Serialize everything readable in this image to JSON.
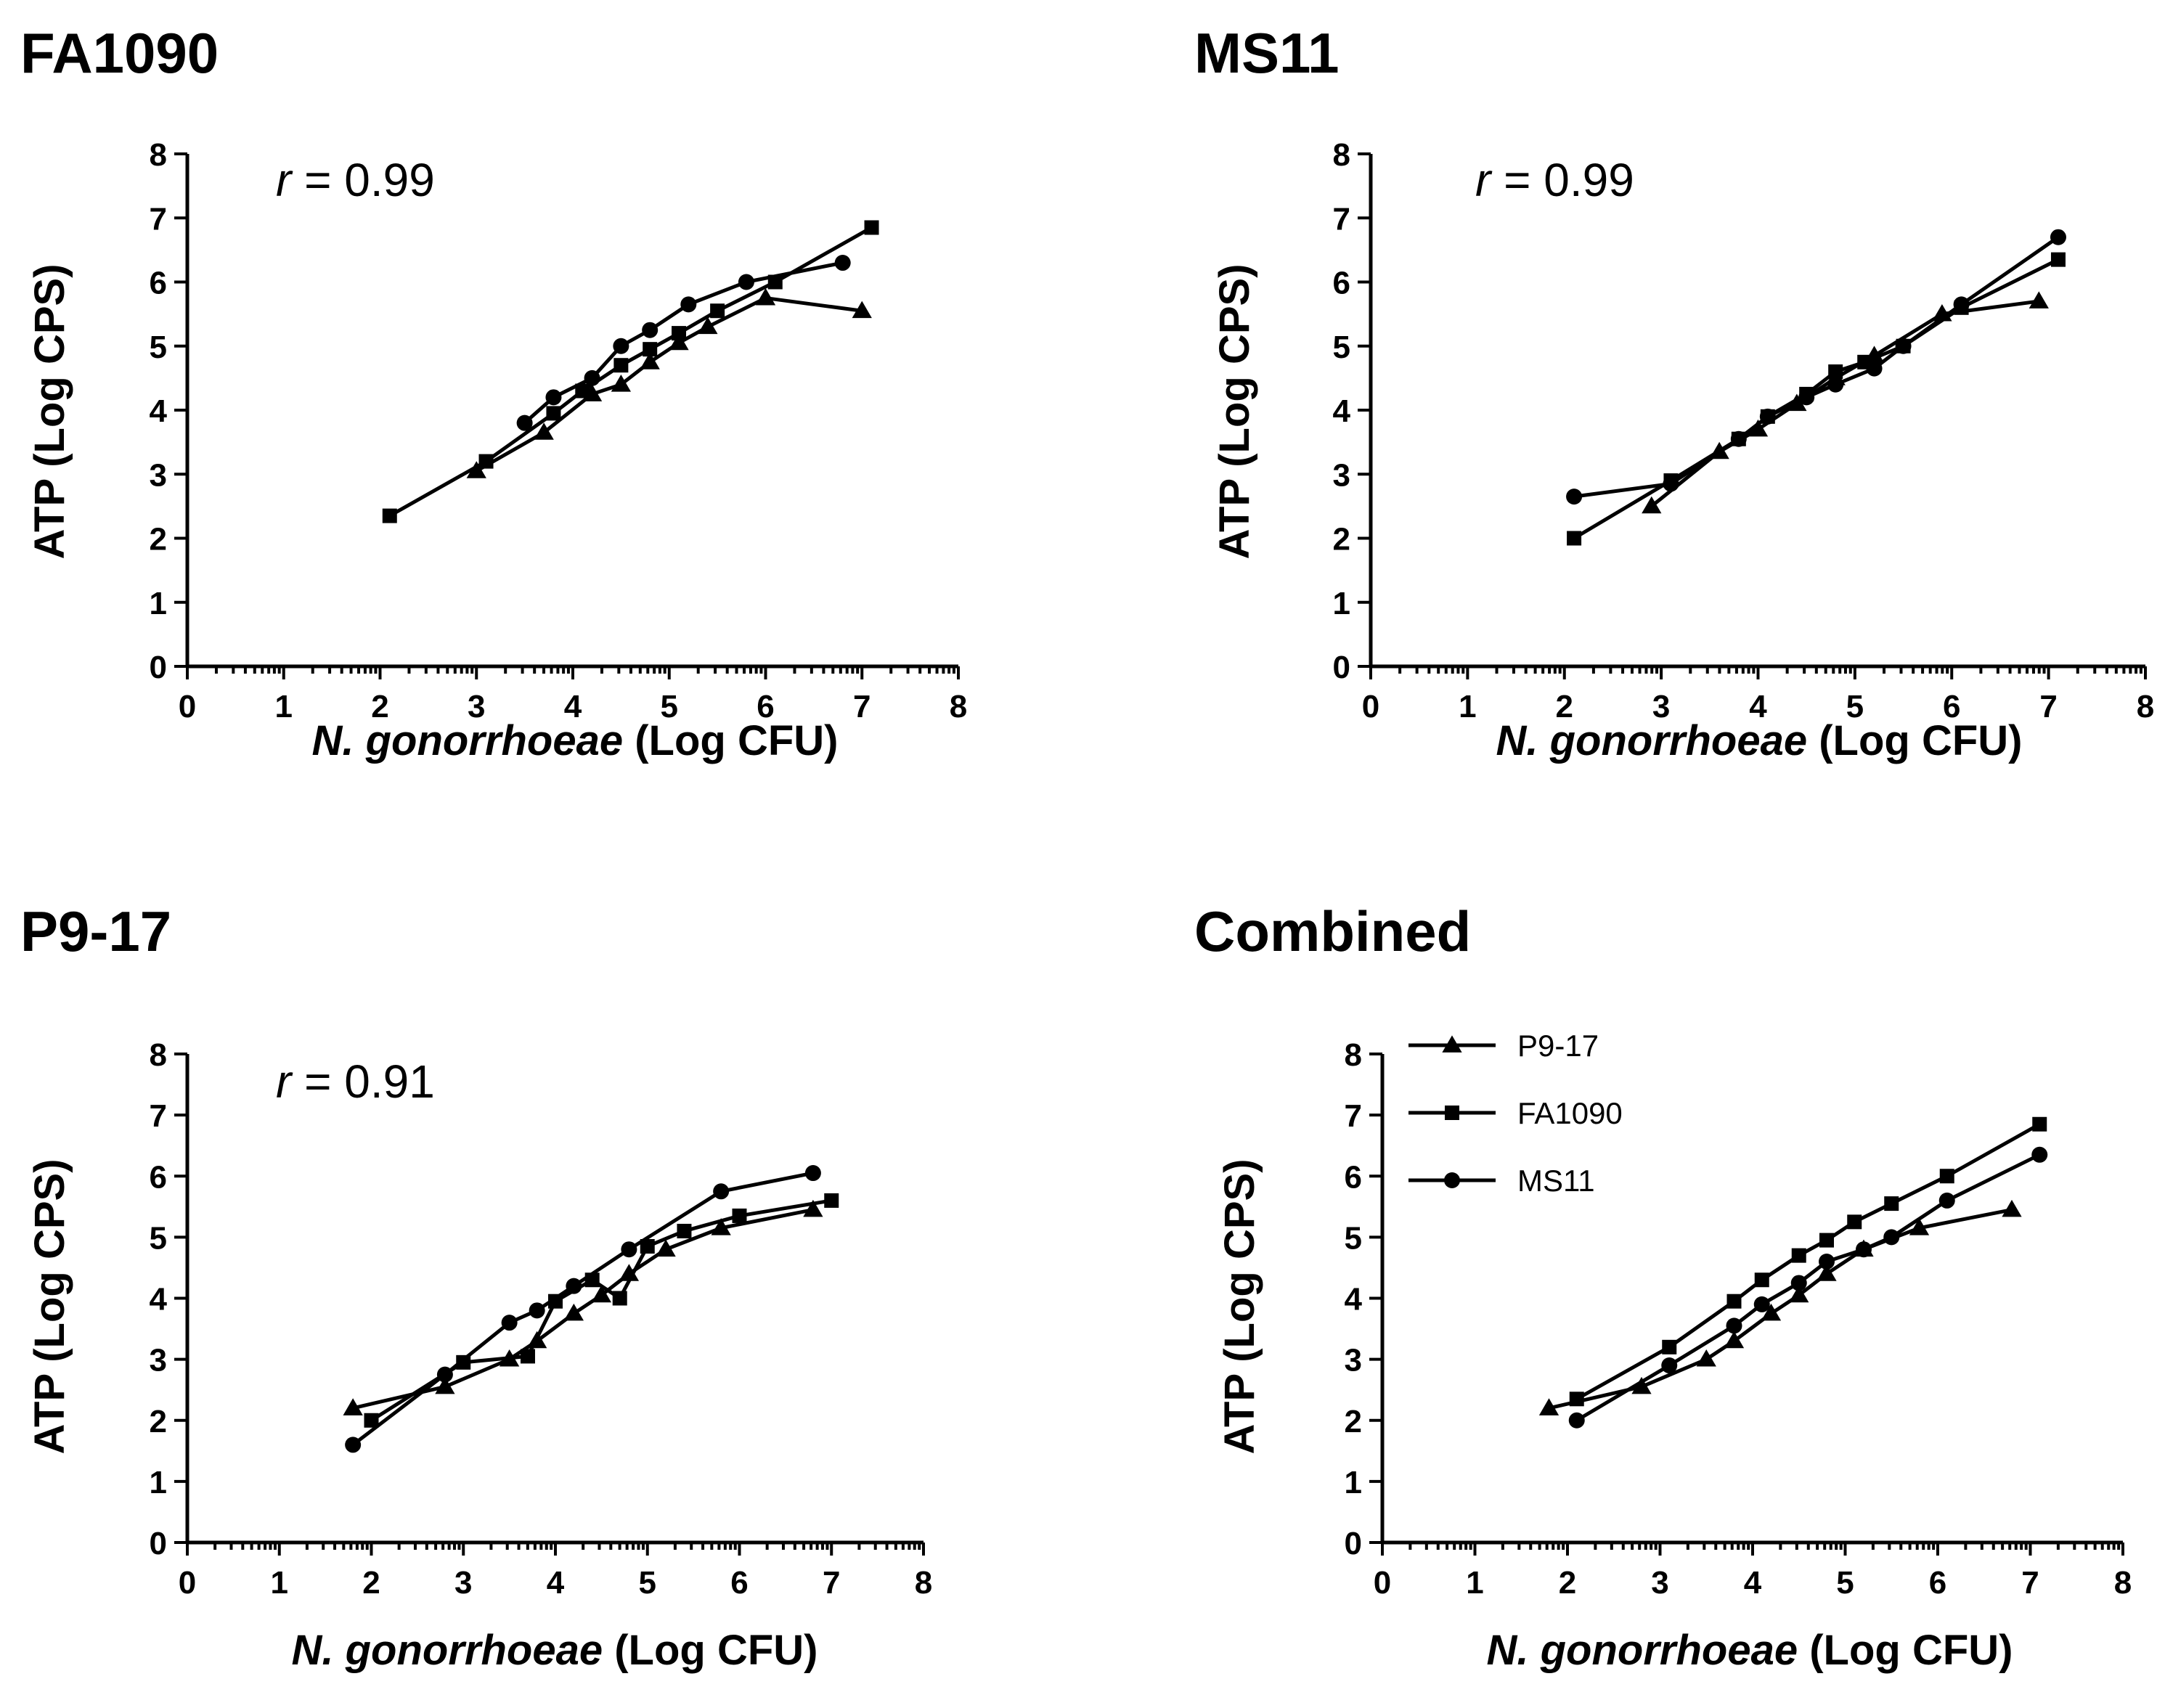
{
  "figure": {
    "colors": {
      "ink": "#000000",
      "background": "#ffffff"
    },
    "marker_shapes": {
      "P9-17": "triangle",
      "FA1090": "square",
      "MS11": "circle"
    }
  },
  "chart_data": [
    {
      "id": "fa1090",
      "type": "line",
      "title": "FA1090",
      "r_prefix": "r",
      "r_value": " = 0.99",
      "xlabel_italic": "N. gonorrhoeae",
      "xlabel_rest": " (Log CFU)",
      "ylabel": "ATP (Log CPS)",
      "xlim": [
        0,
        8
      ],
      "ylim": [
        0,
        8
      ],
      "xticks": [
        "0",
        "1",
        "2",
        "3",
        "4",
        "5",
        "6",
        "7",
        "8"
      ],
      "yticks": [
        "0",
        "1",
        "2",
        "3",
        "4",
        "5",
        "6",
        "7",
        "8"
      ],
      "legend": null,
      "series": [
        {
          "name": "P9-17",
          "marker": "triangle",
          "x": [
            3.0,
            3.7,
            4.2,
            4.5,
            4.8,
            5.1,
            5.4,
            6.0,
            7.0
          ],
          "y": [
            3.05,
            3.65,
            4.25,
            4.4,
            4.75,
            5.05,
            5.3,
            5.75,
            5.55
          ]
        },
        {
          "name": "FA1090",
          "marker": "square",
          "x": [
            2.1,
            3.1,
            3.8,
            4.1,
            4.5,
            4.8,
            5.1,
            5.5,
            6.1,
            7.1
          ],
          "y": [
            2.35,
            3.2,
            3.95,
            4.3,
            4.7,
            4.95,
            5.2,
            5.55,
            6.0,
            6.85
          ]
        },
        {
          "name": "MS11",
          "marker": "circle",
          "x": [
            3.5,
            3.8,
            4.2,
            4.5,
            4.8,
            5.2,
            5.8,
            6.8
          ],
          "y": [
            3.8,
            4.2,
            4.5,
            5.0,
            5.25,
            5.65,
            6.0,
            6.3
          ]
        }
      ]
    },
    {
      "id": "ms11",
      "type": "line",
      "title": "MS11",
      "r_prefix": "r",
      "r_value": " = 0.99",
      "xlabel_italic": "N. gonorrhoeae",
      "xlabel_rest": " (Log CFU)",
      "ylabel": "ATP (Log CPS)",
      "xlim": [
        0,
        8
      ],
      "ylim": [
        0,
        8
      ],
      "xticks": [
        "0",
        "1",
        "2",
        "3",
        "4",
        "5",
        "6",
        "7",
        "8"
      ],
      "yticks": [
        "0",
        "1",
        "2",
        "3",
        "4",
        "5",
        "6",
        "7",
        "8"
      ],
      "legend": null,
      "series": [
        {
          "name": "P9-17",
          "marker": "triangle",
          "x": [
            2.9,
            3.6,
            4.0,
            4.4,
            4.8,
            5.2,
            5.9,
            6.9
          ],
          "y": [
            2.5,
            3.35,
            3.7,
            4.1,
            4.5,
            4.85,
            5.5,
            5.7
          ]
        },
        {
          "name": "FA1090",
          "marker": "square",
          "x": [
            2.1,
            3.1,
            3.8,
            4.1,
            4.5,
            4.8,
            5.1,
            5.5,
            6.1,
            7.1
          ],
          "y": [
            2.0,
            2.9,
            3.55,
            3.9,
            4.25,
            4.6,
            4.75,
            5.0,
            5.6,
            6.35
          ]
        },
        {
          "name": "MS11",
          "marker": "circle",
          "x": [
            2.1,
            3.1,
            3.8,
            4.1,
            4.5,
            4.8,
            5.2,
            5.5,
            6.1,
            7.1
          ],
          "y": [
            2.65,
            2.85,
            3.55,
            3.9,
            4.2,
            4.4,
            4.65,
            5.0,
            5.65,
            6.7
          ]
        }
      ]
    },
    {
      "id": "p9-17",
      "type": "line",
      "title": "P9-17",
      "r_prefix": "r",
      "r_value": " = 0.91",
      "xlabel_italic": "N. gonorrhoeae",
      "xlabel_rest": " (Log CFU)",
      "ylabel": "ATP (Log CPS)",
      "xlim": [
        0,
        8
      ],
      "ylim": [
        0,
        8
      ],
      "xticks": [
        "0",
        "1",
        "2",
        "3",
        "4",
        "5",
        "6",
        "7",
        "8"
      ],
      "yticks": [
        "0",
        "1",
        "2",
        "3",
        "4",
        "5",
        "6",
        "7",
        "8"
      ],
      "legend": null,
      "series": [
        {
          "name": "P9-17",
          "marker": "triangle",
          "x": [
            1.8,
            2.8,
            3.5,
            3.8,
            4.2,
            4.5,
            4.8,
            5.2,
            5.8,
            6.8
          ],
          "y": [
            2.2,
            2.55,
            3.0,
            3.3,
            3.75,
            4.05,
            4.4,
            4.8,
            5.15,
            5.45
          ]
        },
        {
          "name": "FA1090",
          "marker": "square",
          "x": [
            2.0,
            3.0,
            3.7,
            4.0,
            4.4,
            4.7,
            5.0,
            5.4,
            6.0,
            7.0
          ],
          "y": [
            2.0,
            2.95,
            3.05,
            3.95,
            4.3,
            4.0,
            4.85,
            5.1,
            5.35,
            5.6
          ]
        },
        {
          "name": "MS11",
          "marker": "circle",
          "x": [
            1.8,
            2.8,
            3.5,
            3.8,
            4.2,
            4.8,
            5.8,
            6.8
          ],
          "y": [
            1.6,
            2.75,
            3.6,
            3.8,
            4.2,
            4.8,
            5.75,
            6.05
          ]
        }
      ]
    },
    {
      "id": "combined",
      "type": "line",
      "title": "Combined",
      "r_prefix": "",
      "r_value": "",
      "xlabel_italic": "N. gonorrhoeae",
      "xlabel_rest": " (Log CFU)",
      "ylabel": "ATP (Log CPS)",
      "xlim": [
        0,
        8
      ],
      "ylim": [
        0,
        8
      ],
      "xticks": [
        "0",
        "1",
        "2",
        "3",
        "4",
        "5",
        "6",
        "7",
        "8"
      ],
      "yticks": [
        "0",
        "1",
        "2",
        "3",
        "4",
        "5",
        "6",
        "7",
        "8"
      ],
      "legend": {
        "position": "top-left",
        "entries": [
          "P9-17",
          "FA1090",
          "MS11"
        ]
      },
      "series": [
        {
          "name": "P9-17",
          "marker": "triangle",
          "x": [
            1.8,
            2.8,
            3.5,
            3.8,
            4.2,
            4.5,
            4.8,
            5.2,
            5.8,
            6.8
          ],
          "y": [
            2.2,
            2.55,
            3.0,
            3.3,
            3.75,
            4.05,
            4.4,
            4.8,
            5.15,
            5.45
          ]
        },
        {
          "name": "FA1090",
          "marker": "square",
          "x": [
            2.1,
            3.1,
            3.8,
            4.1,
            4.5,
            4.8,
            5.1,
            5.5,
            6.1,
            7.1
          ],
          "y": [
            2.35,
            3.2,
            3.95,
            4.3,
            4.7,
            4.95,
            5.25,
            5.55,
            6.0,
            6.85
          ]
        },
        {
          "name": "MS11",
          "marker": "circle",
          "x": [
            2.1,
            3.1,
            3.8,
            4.1,
            4.5,
            4.8,
            5.2,
            5.5,
            6.1,
            7.1
          ],
          "y": [
            2.0,
            2.9,
            3.55,
            3.9,
            4.25,
            4.6,
            4.8,
            5.0,
            5.6,
            6.35
          ]
        }
      ]
    }
  ]
}
